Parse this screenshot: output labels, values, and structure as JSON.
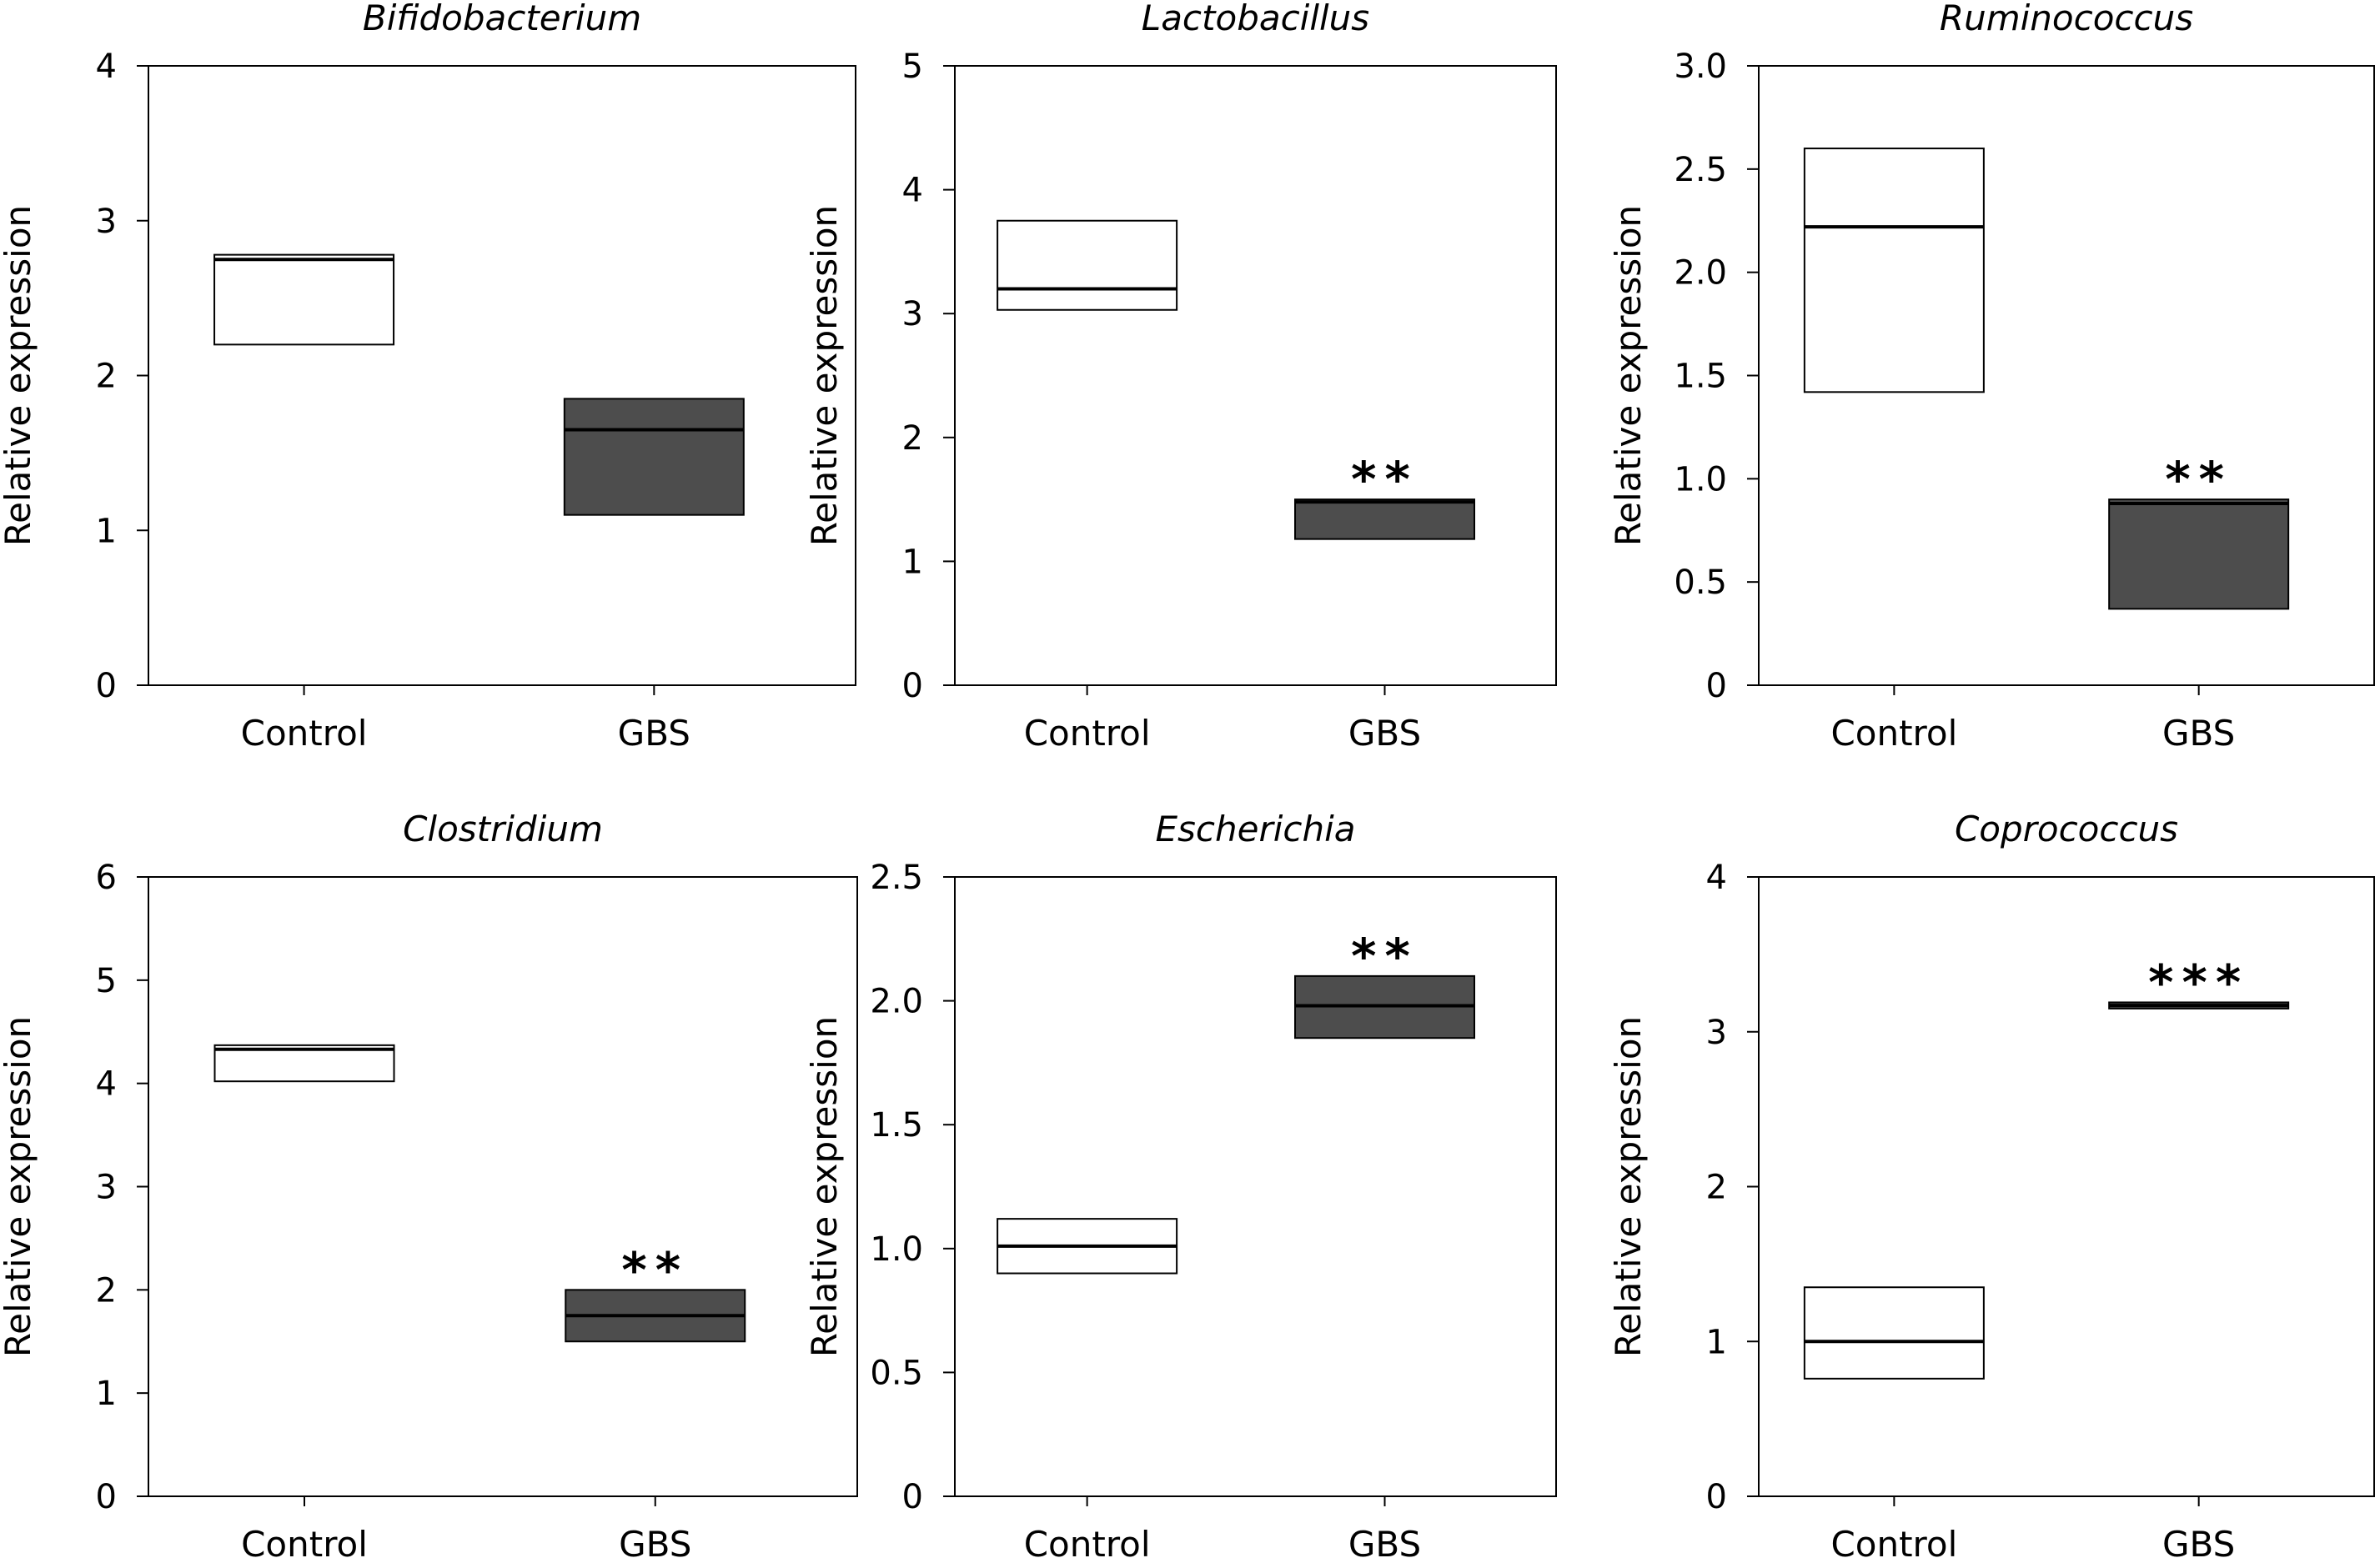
{
  "figure": {
    "category_labels": [
      "Control",
      "GBS"
    ],
    "ylabel": "Relative expression",
    "colors": {
      "control_fill": "#ffffff",
      "gbs_fill": "#4d4d4d",
      "stroke": "#000000"
    }
  },
  "chart_data": [
    {
      "type": "box",
      "title": "Bifidobacterium",
      "ylabel": "Relative expression",
      "ylim": [
        0,
        4
      ],
      "yticks": [
        "0",
        "1",
        "2",
        "3",
        "4"
      ],
      "categories": [
        "Control",
        "GBS"
      ],
      "boxes": [
        {
          "name": "Control",
          "q1": 2.2,
          "median": 2.75,
          "q3": 2.78,
          "fill": "#ffffff",
          "annotation": ""
        },
        {
          "name": "GBS",
          "q1": 1.1,
          "median": 1.65,
          "q3": 1.85,
          "fill": "#4d4d4d",
          "annotation": ""
        }
      ]
    },
    {
      "type": "box",
      "title": "Lactobacillus",
      "ylabel": "Relative expression",
      "ylim": [
        0,
        5
      ],
      "yticks": [
        "0",
        "1",
        "2",
        "3",
        "4",
        "5"
      ],
      "categories": [
        "Control",
        "GBS"
      ],
      "boxes": [
        {
          "name": "Control",
          "q1": 3.03,
          "median": 3.2,
          "q3": 3.75,
          "fill": "#ffffff",
          "annotation": ""
        },
        {
          "name": "GBS",
          "q1": 1.18,
          "median": 1.48,
          "q3": 1.5,
          "fill": "#4d4d4d",
          "annotation": "**"
        }
      ]
    },
    {
      "type": "box",
      "title": "Ruminococcus",
      "ylabel": "Relative expression",
      "ylim": [
        0,
        3.0
      ],
      "yticks": [
        "0",
        "0.5",
        "1.0",
        "1.5",
        "2.0",
        "2.5",
        "3.0"
      ],
      "categories": [
        "Control",
        "GBS"
      ],
      "boxes": [
        {
          "name": "Control",
          "q1": 1.42,
          "median": 2.22,
          "q3": 2.6,
          "fill": "#ffffff",
          "annotation": ""
        },
        {
          "name": "GBS",
          "q1": 0.37,
          "median": 0.88,
          "q3": 0.9,
          "fill": "#4d4d4d",
          "annotation": "**"
        }
      ]
    },
    {
      "type": "box",
      "title": "Clostridium",
      "ylabel": "Relative expression",
      "ylim": [
        0,
        6
      ],
      "yticks": [
        "0",
        "1",
        "2",
        "3",
        "4",
        "5",
        "6"
      ],
      "categories": [
        "Control",
        "GBS"
      ],
      "boxes": [
        {
          "name": "Control",
          "q1": 4.02,
          "median": 4.33,
          "q3": 4.37,
          "fill": "#ffffff",
          "annotation": ""
        },
        {
          "name": "GBS",
          "q1": 1.5,
          "median": 1.75,
          "q3": 2.0,
          "fill": "#4d4d4d",
          "annotation": "**"
        }
      ]
    },
    {
      "type": "box",
      "title": "Escherichia",
      "ylabel": "Relative expression",
      "ylim": [
        0,
        2.5
      ],
      "yticks": [
        "0",
        "0.5",
        "1.0",
        "1.5",
        "2.0",
        "2.5"
      ],
      "categories": [
        "Control",
        "GBS"
      ],
      "boxes": [
        {
          "name": "Control",
          "q1": 0.9,
          "median": 1.01,
          "q3": 1.12,
          "fill": "#ffffff",
          "annotation": ""
        },
        {
          "name": "GBS",
          "q1": 1.85,
          "median": 1.98,
          "q3": 2.1,
          "fill": "#4d4d4d",
          "annotation": "**"
        }
      ]
    },
    {
      "type": "box",
      "title": "Coprococcus",
      "ylabel": "Relative expression",
      "ylim": [
        0,
        4
      ],
      "yticks": [
        "0",
        "1",
        "2",
        "3",
        "4"
      ],
      "categories": [
        "Control",
        "GBS"
      ],
      "boxes": [
        {
          "name": "Control",
          "q1": 0.76,
          "median": 1.0,
          "q3": 1.35,
          "fill": "#ffffff",
          "annotation": ""
        },
        {
          "name": "GBS",
          "q1": 3.15,
          "median": 3.17,
          "q3": 3.19,
          "fill": "#4d4d4d",
          "annotation": "***"
        }
      ]
    }
  ]
}
